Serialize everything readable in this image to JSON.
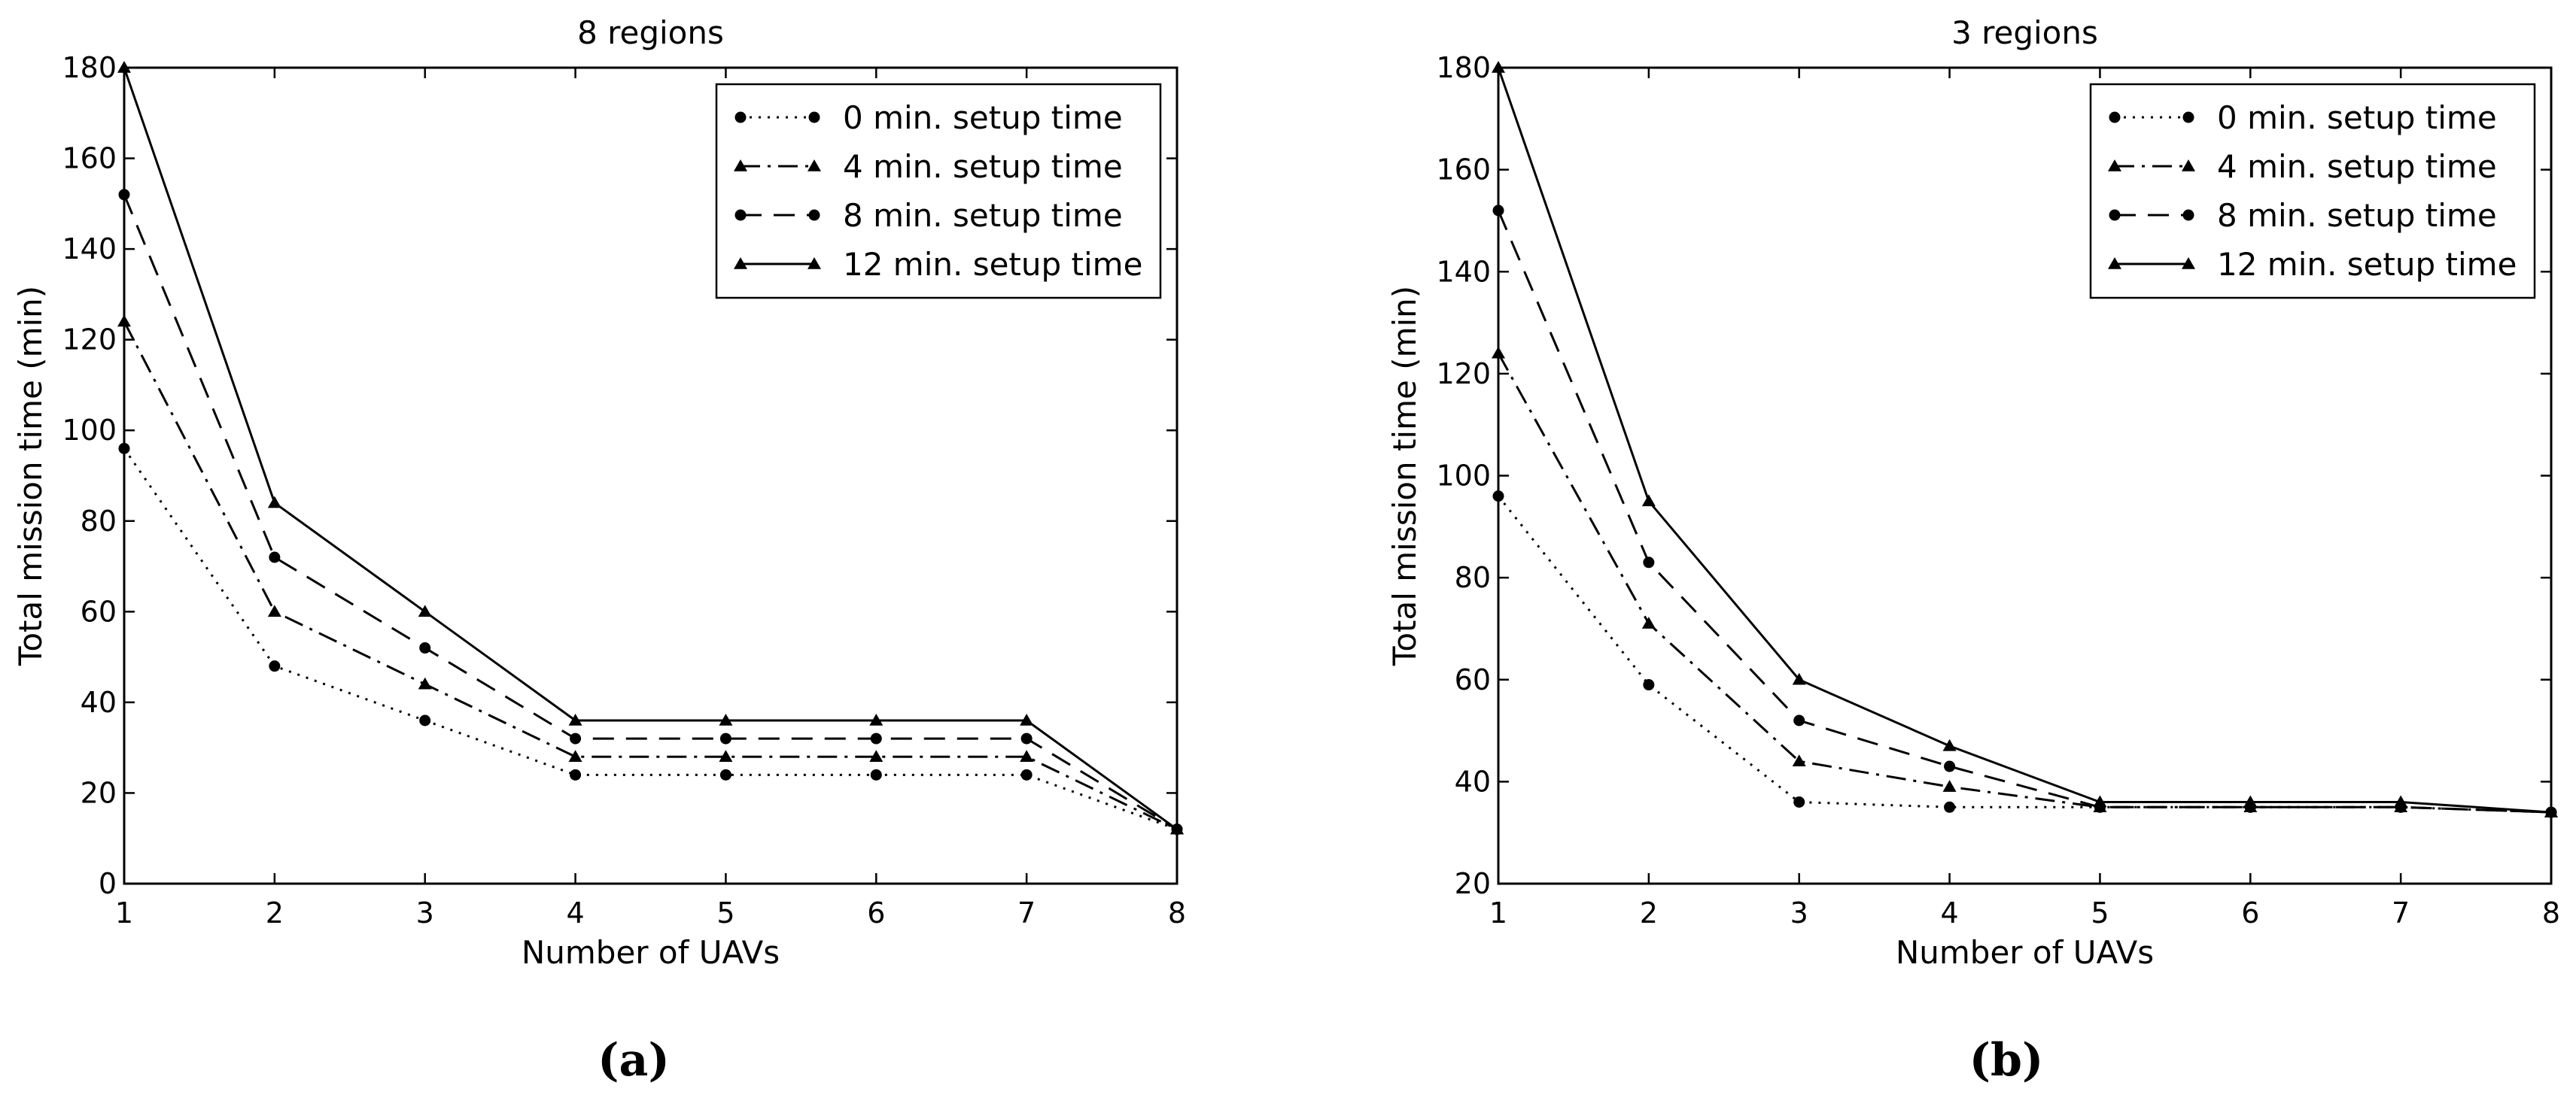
{
  "panels": [
    {
      "caption": "(a)",
      "chart_data": {
        "type": "line",
        "title": "8 regions",
        "xlabel": "Number of UAVs",
        "ylabel": "Total mission time (min)",
        "xlim": [
          1,
          8
        ],
        "ylim": [
          0,
          180
        ],
        "xticks": [
          1,
          2,
          3,
          4,
          5,
          6,
          7,
          8
        ],
        "yticks": [
          0,
          20,
          40,
          60,
          80,
          100,
          120,
          140,
          160,
          180
        ],
        "grid": false,
        "legend_position": "top-right",
        "x": [
          1,
          2,
          3,
          4,
          5,
          6,
          7,
          8
        ],
        "series": [
          {
            "name": "0 min. setup time",
            "values": [
              96,
              48,
              36,
              24,
              24,
              24,
              24,
              12
            ],
            "style": "dotted",
            "marker": "circle"
          },
          {
            "name": "4 min. setup time",
            "values": [
              124,
              60,
              44,
              28,
              28,
              28,
              28,
              12
            ],
            "style": "dashdot",
            "marker": "triangle"
          },
          {
            "name": "8 min. setup time",
            "values": [
              152,
              72,
              52,
              32,
              32,
              32,
              32,
              12
            ],
            "style": "dashed",
            "marker": "circle"
          },
          {
            "name": "12 min. setup time",
            "values": [
              180,
              84,
              60,
              36,
              36,
              36,
              36,
              12
            ],
            "style": "solid",
            "marker": "triangle"
          }
        ]
      }
    },
    {
      "caption": "(b)",
      "chart_data": {
        "type": "line",
        "title": "3 regions",
        "xlabel": "Number of UAVs",
        "ylabel": "Total mission time (min)",
        "xlim": [
          1,
          8
        ],
        "ylim": [
          20,
          180
        ],
        "xticks": [
          1,
          2,
          3,
          4,
          5,
          6,
          7,
          8
        ],
        "yticks": [
          20,
          40,
          60,
          80,
          100,
          120,
          140,
          160,
          180
        ],
        "grid": false,
        "legend_position": "top-right",
        "x": [
          1,
          2,
          3,
          4,
          5,
          6,
          7,
          8
        ],
        "series": [
          {
            "name": "0 min. setup time",
            "values": [
              96,
              59,
              36,
              35,
              35,
              35,
              35,
              34
            ],
            "style": "dotted",
            "marker": "circle"
          },
          {
            "name": "4 min. setup time",
            "values": [
              124,
              71,
              44,
              39,
              35,
              35,
              35,
              34
            ],
            "style": "dashdot",
            "marker": "triangle"
          },
          {
            "name": "8 min. setup time",
            "values": [
              152,
              83,
              52,
              43,
              35,
              35,
              35,
              34
            ],
            "style": "dashed",
            "marker": "circle"
          },
          {
            "name": "12 min. setup time",
            "values": [
              180,
              95,
              60,
              47,
              36,
              36,
              36,
              34
            ],
            "style": "solid",
            "marker": "triangle"
          }
        ]
      }
    }
  ]
}
